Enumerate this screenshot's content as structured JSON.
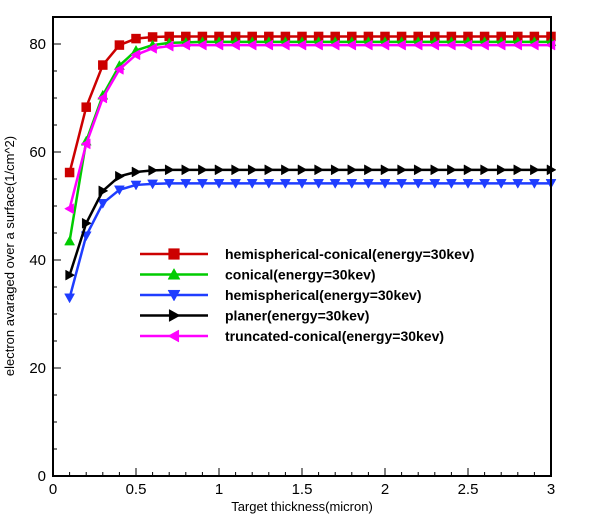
{
  "chart_data": {
    "type": "line",
    "xlabel": "Target thickness(micron)",
    "ylabel": "electron avaraged over a surface(1/cm^2)",
    "xlim": [
      0,
      3
    ],
    "ylim": [
      0,
      85
    ],
    "xticks": [
      0,
      0.5,
      1,
      1.5,
      2,
      2.5,
      3
    ],
    "xtick_labels": [
      "0",
      "0.5",
      "1",
      "1.5",
      "2",
      "2.5",
      "3"
    ],
    "yticks": [
      0,
      20,
      40,
      60,
      80
    ],
    "ytick_labels": [
      "0",
      "20",
      "40",
      "60",
      "80"
    ],
    "grid": false,
    "legend_position": "center",
    "x": [
      0.1,
      0.2,
      0.3,
      0.4,
      0.5,
      0.6,
      0.7,
      0.8,
      0.9,
      1.0,
      1.1,
      1.2,
      1.3,
      1.4,
      1.5,
      1.6,
      1.7,
      1.8,
      1.9,
      2.0,
      2.1,
      2.2,
      2.3,
      2.4,
      2.5,
      2.6,
      2.7,
      2.8,
      2.9,
      3.0
    ],
    "series": [
      {
        "name": "hemispherical-conical(energy=30kev)",
        "color": "#cc0000",
        "marker": "square",
        "values": [
          56.2,
          68.3,
          76.1,
          79.8,
          81.0,
          81.3,
          81.4,
          81.4,
          81.4,
          81.4,
          81.4,
          81.4,
          81.4,
          81.4,
          81.4,
          81.4,
          81.4,
          81.4,
          81.4,
          81.4,
          81.4,
          81.4,
          81.4,
          81.4,
          81.4,
          81.4,
          81.4,
          81.4,
          81.4,
          81.4
        ]
      },
      {
        "name": "conical(energy=30kev)",
        "color": "#00cc00",
        "marker": "triangle-up",
        "values": [
          43.5,
          62.0,
          70.5,
          76.0,
          78.8,
          79.8,
          80.2,
          80.3,
          80.4,
          80.4,
          80.4,
          80.4,
          80.4,
          80.4,
          80.4,
          80.4,
          80.4,
          80.4,
          80.4,
          80.4,
          80.4,
          80.4,
          80.4,
          80.4,
          80.4,
          80.4,
          80.4,
          80.4,
          80.4,
          80.4
        ]
      },
      {
        "name": "hemispherical(energy=30kev)",
        "color": "#1f3dff",
        "marker": "triangle-down",
        "values": [
          33.0,
          44.5,
          50.5,
          53.0,
          53.9,
          54.1,
          54.2,
          54.2,
          54.2,
          54.2,
          54.2,
          54.2,
          54.2,
          54.2,
          54.2,
          54.2,
          54.2,
          54.2,
          54.2,
          54.2,
          54.2,
          54.2,
          54.2,
          54.2,
          54.2,
          54.2,
          54.2,
          54.2,
          54.2,
          54.2
        ]
      },
      {
        "name": "planer(energy=30kev)",
        "color": "#000000",
        "marker": "triangle-right",
        "values": [
          37.2,
          46.8,
          52.8,
          55.5,
          56.3,
          56.6,
          56.7,
          56.7,
          56.7,
          56.7,
          56.7,
          56.7,
          56.7,
          56.7,
          56.7,
          56.7,
          56.7,
          56.7,
          56.7,
          56.7,
          56.7,
          56.7,
          56.7,
          56.7,
          56.7,
          56.7,
          56.7,
          56.7,
          56.7,
          56.7
        ]
      },
      {
        "name": "truncated-conical(energy=30kev)",
        "color": "#ff00ff",
        "marker": "triangle-left",
        "values": [
          49.5,
          61.5,
          70.0,
          75.3,
          78.0,
          79.2,
          79.6,
          79.8,
          79.8,
          79.8,
          79.8,
          79.8,
          79.8,
          79.8,
          79.8,
          79.8,
          79.8,
          79.8,
          79.8,
          79.8,
          79.8,
          79.8,
          79.8,
          79.8,
          79.8,
          79.8,
          79.8,
          79.8,
          79.8,
          79.8
        ]
      }
    ]
  }
}
